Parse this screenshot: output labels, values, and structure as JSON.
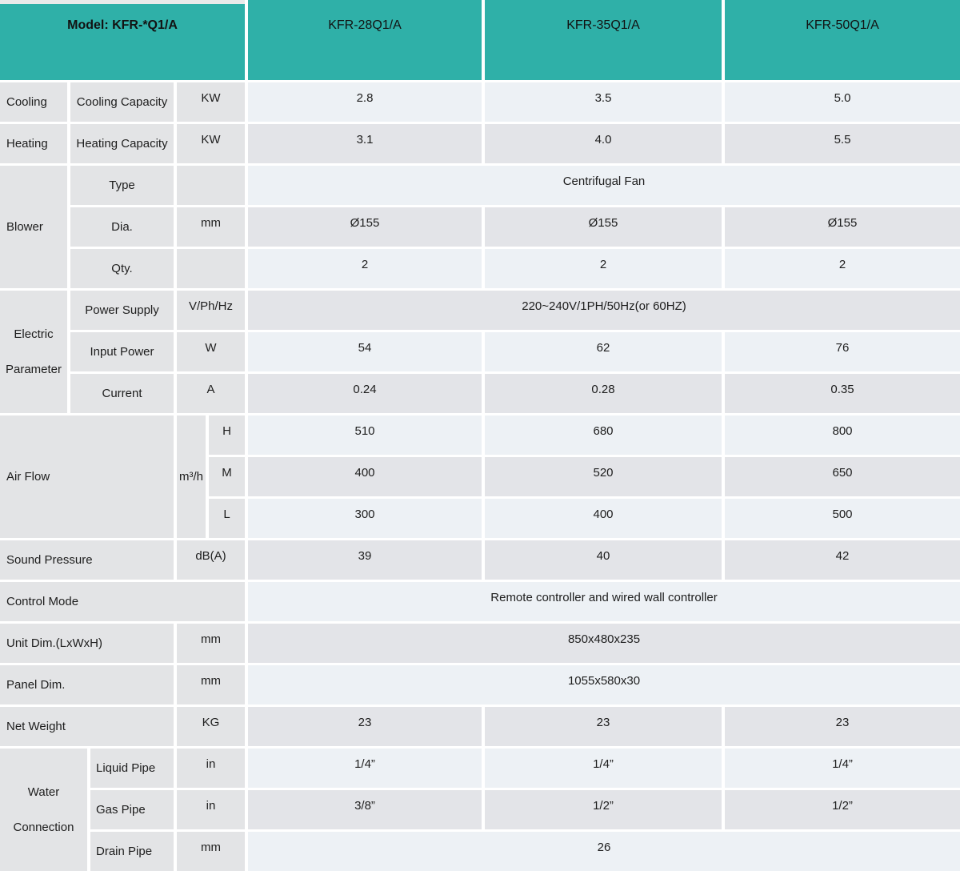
{
  "colors": {
    "header_teal": "#2fb0a8",
    "row_light": "#edf1f5",
    "row_dark": "#e3e4e8",
    "label_gray": "#e3e4e6"
  },
  "header": {
    "model_label": "Model: KFR-*Q1/A",
    "columns": [
      "KFR-28Q1/A",
      "KFR-35Q1/A",
      "KFR-50Q1/A"
    ]
  },
  "sections": {
    "cooling": {
      "label": "Cooling",
      "sub": "Cooling Capacity",
      "unit": "KW",
      "values": [
        "2.8",
        "3.5",
        "5.0"
      ]
    },
    "heating": {
      "label": "Heating",
      "sub": "Heating Capacity",
      "unit": "KW",
      "values": [
        "3.1",
        "4.0",
        "5.5"
      ]
    },
    "blower": {
      "label": "Blower",
      "type": {
        "sub": "Type",
        "unit": "",
        "span": "Centrifugal Fan"
      },
      "dia": {
        "sub": "Dia.",
        "unit": "mm",
        "values": [
          "Ø155",
          "Ø155",
          "Ø155"
        ]
      },
      "qty": {
        "sub": "Qty.",
        "unit": "",
        "values": [
          "2",
          "2",
          "2"
        ]
      }
    },
    "electric": {
      "label": "Electric Parameter",
      "power_supply": {
        "sub": "Power Supply",
        "unit": "V/Ph/Hz",
        "span": "220~240V/1PH/50Hz(or 60HZ)"
      },
      "input_power": {
        "sub": "Input Power",
        "unit": "W",
        "values": [
          "54",
          "62",
          "76"
        ]
      },
      "current": {
        "sub": "Current",
        "unit": "A",
        "values": [
          "0.24",
          "0.28",
          "0.35"
        ]
      }
    },
    "air_flow": {
      "label": "Air Flow",
      "unit": "m³/h",
      "h": {
        "sub": "H",
        "values": [
          "510",
          "680",
          "800"
        ]
      },
      "m": {
        "sub": "M",
        "values": [
          "400",
          "520",
          "650"
        ]
      },
      "l": {
        "sub": "L",
        "values": [
          "300",
          "400",
          "500"
        ]
      }
    },
    "sound_pressure": {
      "label": "Sound Pressure",
      "unit": "dB(A)",
      "values": [
        "39",
        "40",
        "42"
      ]
    },
    "control_mode": {
      "label": "Control Mode",
      "span": "Remote controller and wired wall controller"
    },
    "unit_dim": {
      "label": "Unit Dim.(LxWxH)",
      "unit": "mm",
      "span": "850x480x235"
    },
    "panel_dim": {
      "label": "Panel Dim.",
      "unit": "mm",
      "span": "1055x580x30"
    },
    "net_weight": {
      "label": "Net Weight",
      "unit": "KG",
      "values": [
        "23",
        "23",
        "23"
      ]
    },
    "water": {
      "label": "Water Connection",
      "liquid": {
        "sub": "Liquid Pipe",
        "unit": "in",
        "values": [
          "1/4”",
          "1/4”",
          "1/4”"
        ]
      },
      "gas": {
        "sub": "Gas Pipe",
        "unit": "in",
        "values": [
          "3/8”",
          "1/2”",
          "1/2”"
        ]
      },
      "drain": {
        "sub": "Drain Pipe",
        "unit": "mm",
        "span": "26"
      }
    }
  }
}
